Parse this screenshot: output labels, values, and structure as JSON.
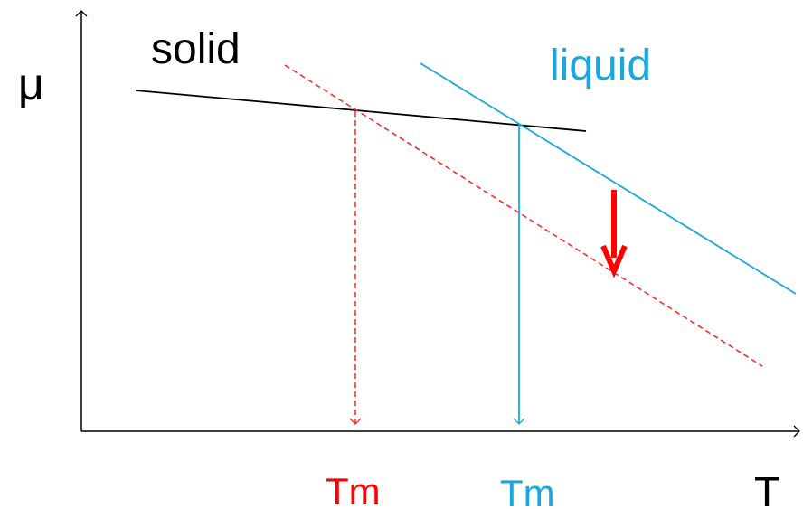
{
  "axes": {
    "y_label": "μ",
    "x_label": "T"
  },
  "lines": [
    {
      "label": "solid"
    },
    {
      "label": "liquid"
    }
  ],
  "melting_points": [
    {
      "label": "Tm"
    },
    {
      "label": "Tm"
    }
  ]
}
